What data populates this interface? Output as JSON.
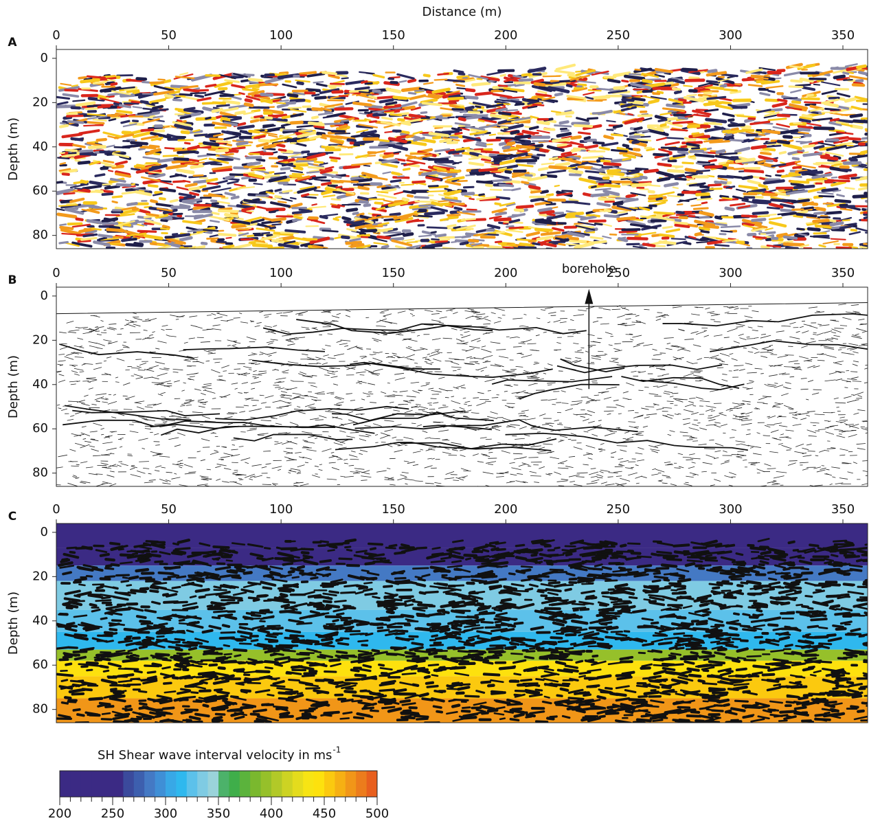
{
  "chart_data": [
    {
      "type": "seismic",
      "title": "Distance (m)",
      "panel_label": "A",
      "ylabel": "Depth (m)",
      "xlim": [
        0,
        361
      ],
      "xticks": [
        0,
        50,
        100,
        150,
        200,
        250,
        300,
        350
      ],
      "ylim": [
        -4,
        86
      ],
      "yticks": [
        0,
        20,
        40,
        60,
        80
      ]
    },
    {
      "type": "line-drawing",
      "panel_label": "B",
      "ylabel": "Depth (m)",
      "xlim": [
        0,
        361
      ],
      "xticks": [
        0,
        50,
        100,
        150,
        200,
        250,
        300,
        350
      ],
      "ylim": [
        -4,
        86
      ],
      "yticks": [
        0,
        20,
        40,
        60,
        80
      ],
      "annotation": {
        "text": "borehole",
        "x": 237,
        "y_top": -2,
        "y_bottom": 42
      }
    },
    {
      "type": "velocity",
      "panel_label": "C",
      "ylabel": "Depth (m)",
      "xlim": [
        0,
        361
      ],
      "xticks": [
        0,
        50,
        100,
        150,
        200,
        250,
        300,
        350
      ],
      "ylim": [
        -4,
        86
      ],
      "yticks": [
        0,
        20,
        40,
        60,
        80
      ],
      "layers": [
        {
          "top": -4,
          "bottom": 7,
          "velocity": 210
        },
        {
          "top": 7,
          "bottom": 15,
          "velocity": 250
        },
        {
          "top": 15,
          "bottom": 22,
          "velocity": 280
        },
        {
          "top": 22,
          "bottom": 35,
          "velocity": 330
        },
        {
          "top": 35,
          "bottom": 45,
          "velocity": 320
        },
        {
          "top": 45,
          "bottom": 53,
          "velocity": 310
        },
        {
          "top": 53,
          "bottom": 58,
          "velocity": 390
        },
        {
          "top": 58,
          "bottom": 65,
          "velocity": 440
        },
        {
          "top": 65,
          "bottom": 75,
          "velocity": 450
        },
        {
          "top": 75,
          "bottom": 86,
          "velocity": 470
        }
      ]
    }
  ],
  "colorbar": {
    "title": "SH Shear wave interval velocity in ms",
    "superscript": "-1",
    "lim": [
      200,
      500
    ],
    "ticks": [
      200,
      250,
      300,
      350,
      400,
      450,
      500
    ],
    "minor_step": 10,
    "colors": [
      "#3b2a84",
      "#3b2a84",
      "#3b2a84",
      "#3b2a84",
      "#3b2a84",
      "#3b2a84",
      "#3b4a9c",
      "#3d5fae",
      "#4479c4",
      "#3f8fd6",
      "#38a8e6",
      "#2fb8ee",
      "#5cc1ea",
      "#7fcbe3",
      "#9ad3da",
      "#4cb26a",
      "#3fae4a",
      "#5bb33c",
      "#7ab82e",
      "#96c02a",
      "#b2c928",
      "#cdd323",
      "#e4dc1d",
      "#f7e414",
      "#fde10e",
      "#fbc90f",
      "#f6b013",
      "#f19618",
      "#ec7c1c",
      "#e85f1e"
    ]
  }
}
